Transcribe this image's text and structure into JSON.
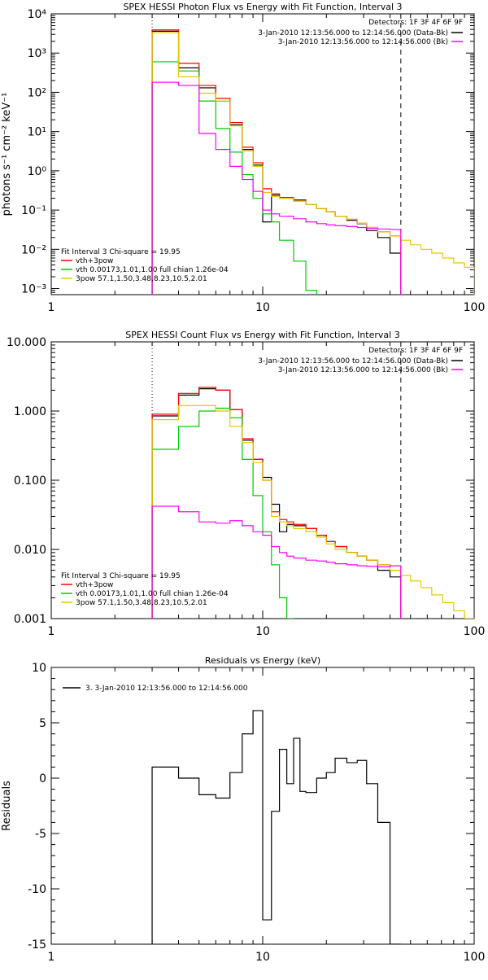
{
  "chart_data": [
    {
      "type": "line",
      "title": "SPEX HESSI Photon Flux vs Energy with Fit Function, Interval 3",
      "xlabel": "",
      "ylabel": "photons s⁻¹ cm⁻² keV⁻¹",
      "xscale": "log",
      "yscale": "log",
      "xlim": [
        1,
        100
      ],
      "ylim": [
        0.0007,
        10000
      ],
      "x_ticks": [
        1,
        10,
        100
      ],
      "x_tick_labels": [
        "1",
        "10",
        "100"
      ],
      "y_ticks": [
        0.001,
        0.01,
        0.1,
        1,
        10,
        100,
        1000,
        10000
      ],
      "y_tick_labels": [
        "10⁻³",
        "10⁻²",
        "10⁻¹",
        "10⁰",
        "10¹",
        "10²",
        "10³",
        "10⁴"
      ],
      "grid": false,
      "header": {
        "detectors": "Detectors: 1F 3F 4F 6F 9F",
        "legend": [
          {
            "text": "3-Jan-2010 12:13:56.000 to 12:14:56.000 (Data-Bk)",
            "color": "#000000"
          },
          {
            "text": "3-Jan-2010 12:13:56.000 to 12:14:56.000 (Bk)",
            "color": "#ff00ff"
          }
        ]
      },
      "fit_legend": {
        "title": "Fit Interval 3   Chi-square = 19.95",
        "entries": [
          {
            "text": "vth+3pow",
            "color": "#ff0000"
          },
          {
            "text": "vth 0.00173,1.01,1.00  full chian 1.26e-04",
            "color": "#00cc00"
          },
          {
            "text": "3pow 57.1,1.50,3.48,8.23,10.5,2.01",
            "color": "#e6c800"
          }
        ]
      },
      "vlines": [
        {
          "x": 3,
          "style": "dotted",
          "color": "#000000"
        },
        {
          "x": 45,
          "style": "dashed",
          "color": "#000000"
        }
      ],
      "edges": [
        3,
        4,
        5,
        6,
        7,
        8,
        9,
        10,
        11,
        12,
        14,
        16,
        18,
        20,
        22,
        25,
        28,
        31,
        35,
        40,
        45,
        50,
        56,
        63,
        71,
        80,
        90,
        100
      ],
      "series": [
        {
          "color": "#000000",
          "start": 0,
          "values": [
            3600,
            420,
            130,
            60,
            15,
            3.5,
            1.4,
            0.05,
            0.24,
            0.2,
            0.18,
            0.14,
            0.11,
            0.09,
            0.07,
            0.055,
            0.045,
            0.03,
            0.02,
            0.008
          ]
        },
        {
          "color": "#ff0000",
          "start": 0,
          "values": [
            3900,
            550,
            150,
            70,
            17,
            4,
            1.6,
            0.35,
            0.26,
            0.21,
            0.17,
            0.14,
            0.11,
            0.09,
            0.07,
            0.058,
            0.046,
            0.036,
            0.028,
            0.022
          ]
        },
        {
          "color": "#00cc00",
          "start": 0,
          "values": [
            600,
            350,
            60,
            12,
            3,
            0.8,
            0.2,
            0.08,
            0.05,
            0.017,
            0.005,
            0.0009
          ]
        },
        {
          "color": "#e6c800",
          "start": 0,
          "values": [
            3300,
            250,
            95,
            60,
            14,
            3.2,
            1.3,
            0.28,
            0.22,
            0.2,
            0.17,
            0.14,
            0.11,
            0.09,
            0.07,
            0.058,
            0.046,
            0.036,
            0.028,
            0.022,
            0.017,
            0.013,
            0.01,
            0.008,
            0.006,
            0.0045,
            0.0035
          ]
        },
        {
          "color": "#ff00ff",
          "start": 0,
          "values": [
            180,
            150,
            9,
            3.5,
            1.3,
            0.6,
            0.3,
            0.1,
            0.08,
            0.07,
            0.06,
            0.05,
            0.045,
            0.042,
            0.04,
            0.038,
            0.036,
            0.034,
            0.033,
            0.032
          ]
        }
      ]
    },
    {
      "type": "line",
      "title": "SPEX HESSI Count Flux vs Energy with Fit Function, Interval 3",
      "xlabel": "",
      "ylabel": "",
      "xscale": "log",
      "yscale": "log",
      "xlim": [
        1,
        100
      ],
      "ylim": [
        0.001,
        10
      ],
      "x_ticks": [
        1,
        10,
        100
      ],
      "x_tick_labels": [
        "1",
        "10",
        "100"
      ],
      "y_ticks": [
        0.001,
        0.01,
        0.1,
        1,
        10
      ],
      "y_tick_labels": [
        "0.001",
        "0.010",
        "0.100",
        "1.000",
        "10.000"
      ],
      "grid": false,
      "header": {
        "detectors": "Detectors: 1F 3F 4F 6F 9F",
        "legend": [
          {
            "text": "3-Jan-2010 12:13:56.000 to 12:14:56.000 (Data-Bk)",
            "color": "#000000"
          },
          {
            "text": "3-Jan-2010 12:13:56.000 to 12:14:56.000 (Bk)",
            "color": "#ff00ff"
          }
        ]
      },
      "fit_legend": {
        "title": "Fit Interval 3   Chi-square = 19.95",
        "entries": [
          {
            "text": "vth+3pow",
            "color": "#ff0000"
          },
          {
            "text": "vth 0.00173,1.01,1.00  full chian 1.26e-04",
            "color": "#00cc00"
          },
          {
            "text": "3pow 57.1,1.50,3.48,8.23,10.5,2.01",
            "color": "#e6c800"
          }
        ]
      },
      "vlines": [
        {
          "x": 3,
          "style": "dotted",
          "color": "#000000"
        },
        {
          "x": 45,
          "style": "dashed",
          "color": "#000000"
        }
      ],
      "edges": [
        3,
        4,
        5,
        6,
        7,
        8,
        9,
        10,
        11,
        12,
        13,
        14,
        16,
        18,
        20,
        22,
        25,
        28,
        31,
        35,
        40,
        45,
        50,
        56,
        63,
        71,
        80,
        90,
        100
      ],
      "series": [
        {
          "color": "#000000",
          "start": 0,
          "values": [
            0.85,
            1.7,
            2.1,
            2.0,
            1.05,
            0.38,
            0.2,
            0.11,
            0.045,
            0.018,
            0.023,
            0.022,
            0.02,
            0.016,
            0.013,
            0.011,
            0.009,
            0.008,
            0.007,
            0.005,
            0.004
          ]
        },
        {
          "color": "#ff0000",
          "start": 0,
          "values": [
            0.9,
            1.8,
            2.2,
            2.0,
            1.05,
            0.4,
            0.2,
            0.1,
            0.035,
            0.027,
            0.025,
            0.023,
            0.02,
            0.016,
            0.013,
            0.011,
            0.009,
            0.008,
            0.007,
            0.006,
            0.005
          ]
        },
        {
          "color": "#00cc00",
          "start": 0,
          "values": [
            0.28,
            0.6,
            1.0,
            1.1,
            0.8,
            0.2,
            0.06,
            0.018,
            0.006,
            0.002,
            0.0008
          ]
        },
        {
          "color": "#e6c800",
          "start": 0,
          "values": [
            0.75,
            1.2,
            1.2,
            1.0,
            0.6,
            0.35,
            0.18,
            0.1,
            0.03,
            0.025,
            0.022,
            0.02,
            0.018,
            0.015,
            0.012,
            0.01,
            0.009,
            0.008,
            0.007,
            0.006,
            0.005,
            0.0042,
            0.0035,
            0.0028,
            0.0022,
            0.0017,
            0.0013,
            0.001
          ]
        },
        {
          "color": "#ff00ff",
          "start": 0,
          "values": [
            0.042,
            0.035,
            0.025,
            0.024,
            0.026,
            0.022,
            0.018,
            0.016,
            0.011,
            0.009,
            0.008,
            0.0075,
            0.007,
            0.0068,
            0.0065,
            0.0062,
            0.006,
            0.0058,
            0.0057,
            0.0056,
            0.0058
          ]
        }
      ]
    },
    {
      "type": "line",
      "title": "Residuals vs Energy (keV)",
      "xlabel": "",
      "ylabel": "Residuals",
      "xscale": "log",
      "yscale": "linear",
      "xlim": [
        1,
        100
      ],
      "ylim": [
        -15,
        10
      ],
      "x_ticks": [
        1,
        10,
        100
      ],
      "x_tick_labels": [
        "1",
        "10",
        "100"
      ],
      "y_ticks": [
        -15,
        -10,
        -5,
        0,
        5,
        10
      ],
      "y_tick_labels": [
        "-15",
        "-10",
        "-5",
        "0",
        "5",
        "10"
      ],
      "grid": false,
      "legend": [
        {
          "text": "3.  3-Jan-2010 12:13:56.000 to 12:14:56.000",
          "color": "#000000"
        }
      ],
      "edges": [
        3,
        4,
        5,
        6,
        7,
        8,
        9,
        10,
        11,
        12,
        13,
        14,
        15,
        16,
        18,
        20,
        22,
        25,
        28,
        31,
        35,
        40,
        45
      ],
      "series": [
        {
          "color": "#000000",
          "start": 0,
          "values": [
            1.0,
            0.0,
            -1.5,
            -1.8,
            0.5,
            4.0,
            6.1,
            -12.8,
            -3.0,
            2.6,
            -0.5,
            3.6,
            -1.2,
            -1.3,
            0.0,
            0.5,
            1.8,
            1.4,
            1.6,
            -0.5,
            -4.0,
            -15
          ]
        }
      ]
    }
  ]
}
